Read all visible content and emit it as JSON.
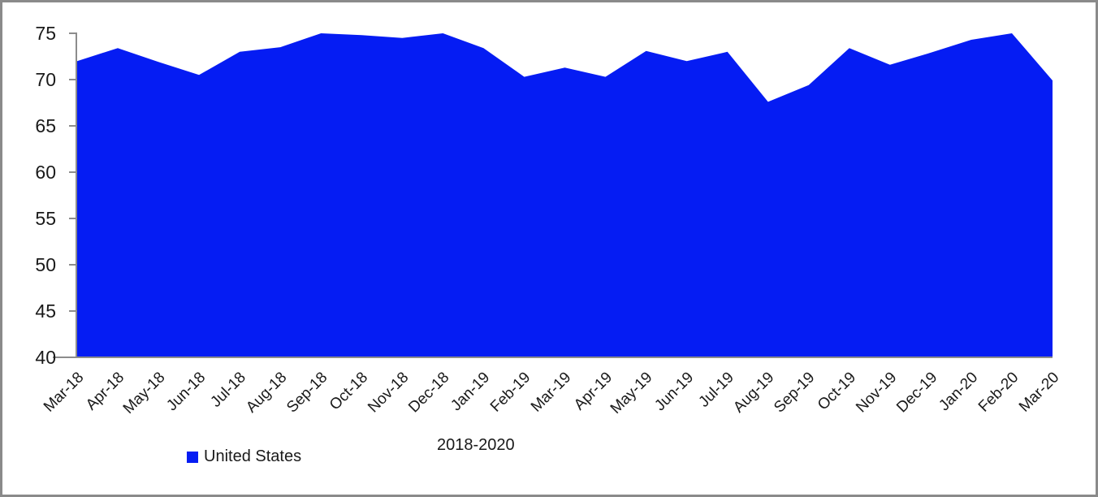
{
  "chart_data": {
    "type": "area",
    "title": "",
    "xlabel": "2018-2020",
    "ylabel": "",
    "categories": [
      "Mar-18",
      "Apr-18",
      "May-18",
      "Jun-18",
      "Jul-18",
      "Aug-18",
      "Sep-18",
      "Oct-18",
      "Nov-18",
      "Dec-18",
      "Jan-19",
      "Feb-19",
      "Mar-19",
      "Apr-19",
      "May-19",
      "Jun-19",
      "Jul-19",
      "Aug-19",
      "Sep-19",
      "Oct-19",
      "Nov-19",
      "Dec-19",
      "Jan-20",
      "Feb-20",
      "Mar-20"
    ],
    "series": [
      {
        "name": "United States",
        "values": [
          72.0,
          73.4,
          71.9,
          70.5,
          73.0,
          73.5,
          75.0,
          74.8,
          74.5,
          75.0,
          73.4,
          70.3,
          71.3,
          70.3,
          73.1,
          72.0,
          73.0,
          67.6,
          69.4,
          73.4,
          71.6,
          72.9,
          74.3,
          75.0,
          69.9
        ]
      }
    ],
    "ylim": [
      40,
      75
    ],
    "y_ticks": [
      75,
      70,
      65,
      60,
      55,
      50,
      45,
      40
    ],
    "grid": false,
    "legend_position": "bottom-left",
    "colors": {
      "area": "#051cf3",
      "axis": "#8c8c8c",
      "text": "#1a1a1a",
      "border": "#8a8a8a",
      "background": "#ffffff"
    }
  }
}
